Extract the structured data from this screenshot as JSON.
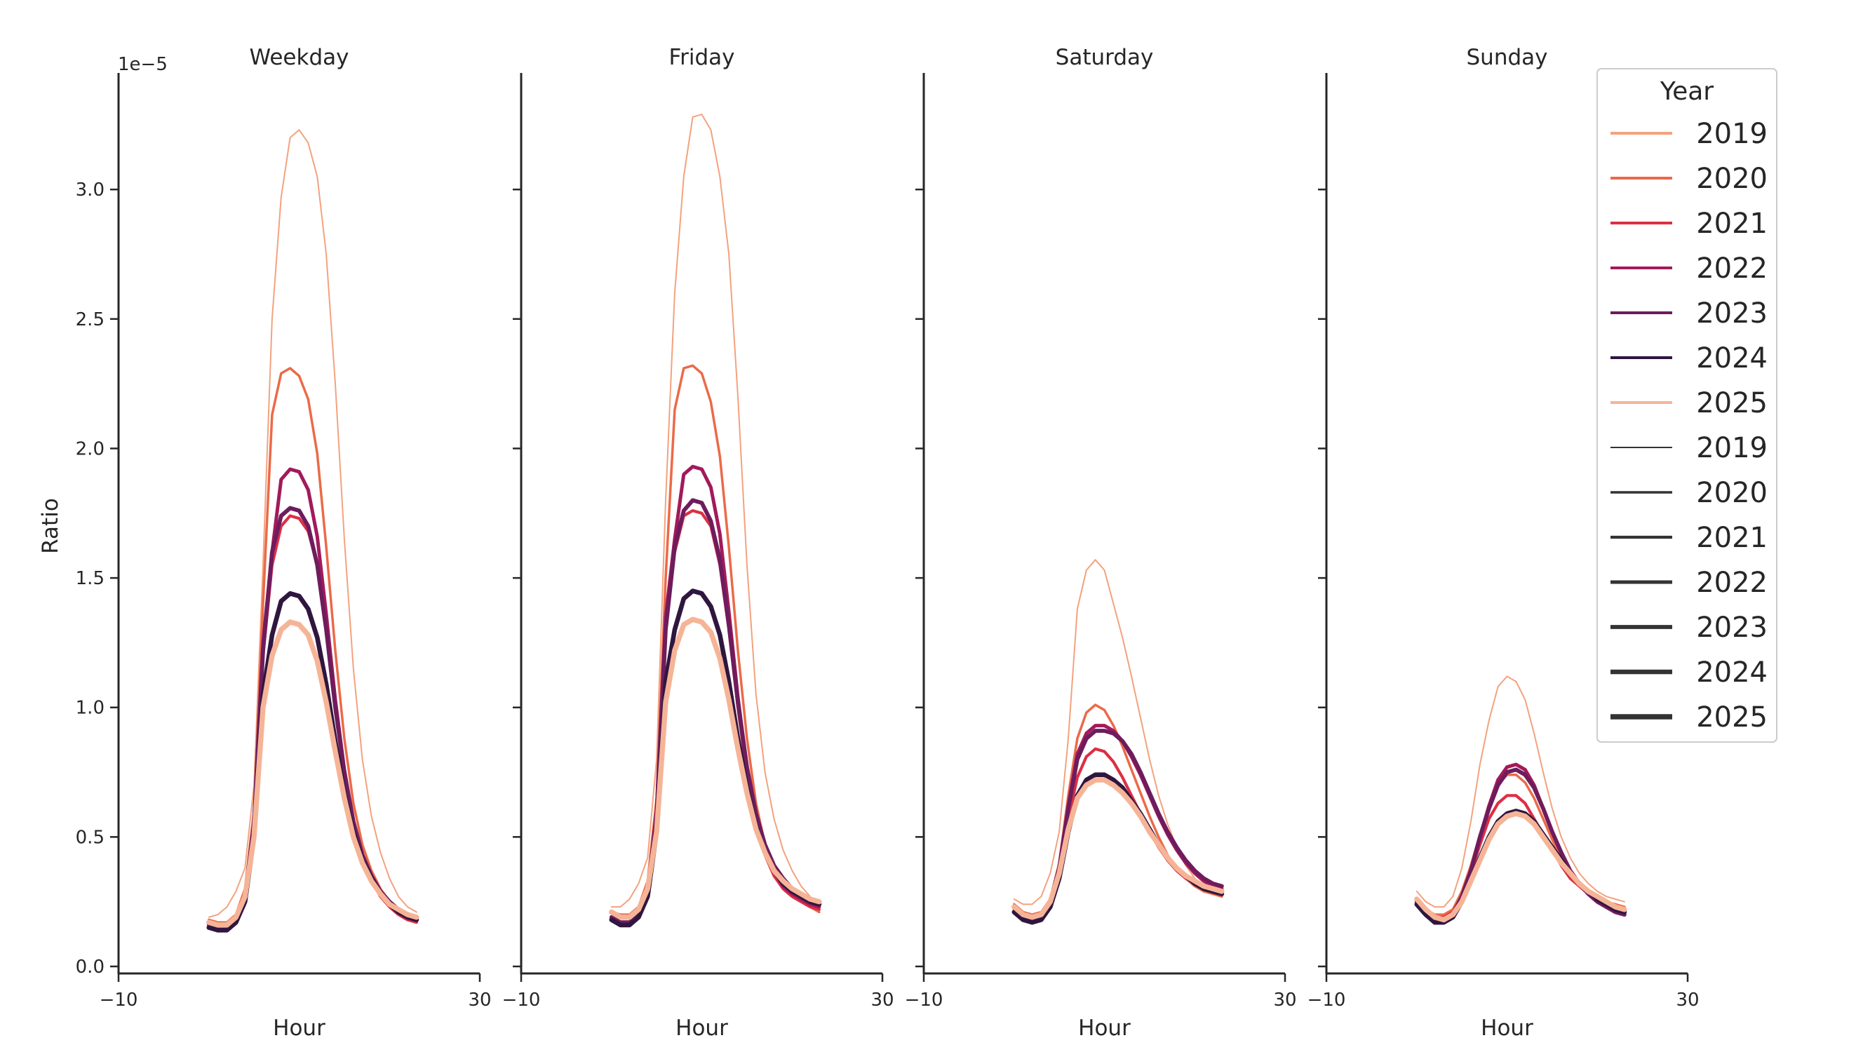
{
  "chart_data": {
    "type": "line",
    "layout": "small-multiples",
    "xlabel": "Hour",
    "ylabel": "Ratio",
    "y_offset_text": "1e−5",
    "xlim": [
      -10,
      30
    ],
    "ylim": [
      0,
      3.45
    ],
    "x_ticks": [
      -10,
      30
    ],
    "x_tick_labels": [
      "−10",
      "30"
    ],
    "y_ticks": [
      0,
      0.5,
      1.0,
      1.5,
      2.0,
      2.5,
      3.0
    ],
    "y_tick_labels": [
      "0.0",
      "0.5",
      "1.0",
      "1.5",
      "2.0",
      "2.5",
      "3.0"
    ],
    "legend": {
      "title": "Year",
      "placement": "upper-right",
      "hue_entries": [
        "2019",
        "2020",
        "2021",
        "2022",
        "2023",
        "2024",
        "2025"
      ],
      "size_entries": [
        "2019",
        "2020",
        "2021",
        "2022",
        "2023",
        "2024",
        "2025"
      ]
    },
    "years": [
      "2019",
      "2020",
      "2021",
      "2022",
      "2023",
      "2024",
      "2025"
    ],
    "colors": {
      "2019": "#f3a27e",
      "2020": "#eb6a48",
      "2021": "#dc2f44",
      "2022": "#a21a5b",
      "2023": "#6e1c5d",
      "2024": "#2f163f",
      "2025": "#f6b497"
    },
    "size_legend_color": "#333333",
    "line_widths": {
      "2019": 2,
      "2020": 3.5,
      "2021": 4.2,
      "2022": 5,
      "2023": 5.8,
      "2024": 6.6,
      "2025": 7.4
    },
    "x": [
      0,
      1,
      2,
      3,
      4,
      5,
      6,
      7,
      8,
      9,
      10,
      11,
      12,
      13,
      14,
      15,
      16,
      17,
      18,
      19,
      20,
      21,
      22,
      23
    ],
    "panels": [
      {
        "title": "Weekday",
        "series": {
          "2019": [
            0.19,
            0.2,
            0.23,
            0.29,
            0.38,
            0.7,
            1.55,
            2.5,
            2.97,
            3.2,
            3.23,
            3.18,
            3.05,
            2.75,
            2.25,
            1.65,
            1.15,
            0.8,
            0.58,
            0.44,
            0.34,
            0.27,
            0.23,
            0.21
          ],
          "2020": [
            0.18,
            0.17,
            0.17,
            0.2,
            0.3,
            0.6,
            1.4,
            2.13,
            2.29,
            2.31,
            2.28,
            2.19,
            1.98,
            1.62,
            1.22,
            0.88,
            0.63,
            0.47,
            0.37,
            0.3,
            0.25,
            0.22,
            0.19,
            0.17
          ],
          "2021": [
            0.16,
            0.15,
            0.15,
            0.18,
            0.27,
            0.55,
            1.2,
            1.55,
            1.7,
            1.74,
            1.73,
            1.68,
            1.55,
            1.3,
            1.0,
            0.74,
            0.55,
            0.42,
            0.33,
            0.27,
            0.23,
            0.2,
            0.18,
            0.17
          ],
          "2022": [
            0.16,
            0.15,
            0.15,
            0.18,
            0.27,
            0.56,
            1.25,
            1.6,
            1.88,
            1.92,
            1.91,
            1.84,
            1.66,
            1.36,
            1.03,
            0.76,
            0.56,
            0.43,
            0.34,
            0.28,
            0.24,
            0.21,
            0.19,
            0.18
          ],
          "2023": [
            0.16,
            0.15,
            0.15,
            0.18,
            0.27,
            0.55,
            1.22,
            1.6,
            1.74,
            1.77,
            1.76,
            1.7,
            1.55,
            1.3,
            1.0,
            0.75,
            0.56,
            0.43,
            0.35,
            0.29,
            0.25,
            0.22,
            0.2,
            0.19
          ],
          "2024": [
            0.15,
            0.14,
            0.14,
            0.17,
            0.25,
            0.5,
            1.05,
            1.28,
            1.41,
            1.44,
            1.43,
            1.38,
            1.27,
            1.09,
            0.87,
            0.67,
            0.52,
            0.41,
            0.34,
            0.28,
            0.24,
            0.21,
            0.19,
            0.18
          ],
          "2025": [
            0.17,
            0.16,
            0.16,
            0.19,
            0.27,
            0.5,
            1.0,
            1.2,
            1.3,
            1.33,
            1.32,
            1.28,
            1.18,
            1.02,
            0.83,
            0.65,
            0.5,
            0.4,
            0.33,
            0.28,
            0.24,
            0.22,
            0.2,
            0.19
          ]
        }
      },
      {
        "title": "Friday",
        "series": {
          "2019": [
            0.23,
            0.23,
            0.26,
            0.32,
            0.42,
            0.8,
            1.8,
            2.6,
            3.05,
            3.28,
            3.29,
            3.23,
            3.05,
            2.75,
            2.2,
            1.55,
            1.05,
            0.75,
            0.57,
            0.45,
            0.37,
            0.31,
            0.27,
            0.24
          ],
          "2020": [
            0.21,
            0.2,
            0.2,
            0.23,
            0.33,
            0.65,
            1.5,
            2.15,
            2.31,
            2.32,
            2.29,
            2.18,
            1.97,
            1.62,
            1.22,
            0.88,
            0.63,
            0.47,
            0.38,
            0.32,
            0.28,
            0.25,
            0.23,
            0.21
          ],
          "2021": [
            0.19,
            0.17,
            0.17,
            0.2,
            0.29,
            0.6,
            1.3,
            1.6,
            1.74,
            1.76,
            1.75,
            1.7,
            1.55,
            1.3,
            1.0,
            0.74,
            0.55,
            0.43,
            0.35,
            0.3,
            0.27,
            0.25,
            0.23,
            0.22
          ],
          "2022": [
            0.19,
            0.17,
            0.17,
            0.2,
            0.29,
            0.6,
            1.35,
            1.65,
            1.9,
            1.93,
            1.92,
            1.85,
            1.67,
            1.37,
            1.04,
            0.77,
            0.58,
            0.45,
            0.37,
            0.31,
            0.28,
            0.26,
            0.24,
            0.23
          ],
          "2023": [
            0.19,
            0.17,
            0.17,
            0.2,
            0.29,
            0.58,
            1.3,
            1.62,
            1.76,
            1.8,
            1.79,
            1.72,
            1.57,
            1.32,
            1.02,
            0.77,
            0.59,
            0.47,
            0.39,
            0.34,
            0.3,
            0.28,
            0.26,
            0.25
          ],
          "2024": [
            0.18,
            0.16,
            0.16,
            0.19,
            0.27,
            0.52,
            1.1,
            1.3,
            1.42,
            1.45,
            1.44,
            1.39,
            1.28,
            1.1,
            0.88,
            0.69,
            0.54,
            0.44,
            0.37,
            0.32,
            0.29,
            0.27,
            0.25,
            0.24
          ],
          "2025": [
            0.21,
            0.19,
            0.19,
            0.22,
            0.3,
            0.52,
            1.02,
            1.22,
            1.32,
            1.34,
            1.33,
            1.29,
            1.19,
            1.03,
            0.84,
            0.67,
            0.53,
            0.44,
            0.37,
            0.33,
            0.3,
            0.28,
            0.26,
            0.25
          ]
        }
      },
      {
        "title": "Saturday",
        "series": {
          "2019": [
            0.26,
            0.24,
            0.24,
            0.27,
            0.36,
            0.52,
            0.88,
            1.38,
            1.53,
            1.57,
            1.53,
            1.4,
            1.27,
            1.12,
            0.96,
            0.8,
            0.66,
            0.55,
            0.46,
            0.39,
            0.34,
            0.3,
            0.28,
            0.27
          ],
          "2020": [
            0.24,
            0.21,
            0.2,
            0.21,
            0.26,
            0.4,
            0.66,
            0.88,
            0.98,
            1.01,
            0.99,
            0.93,
            0.85,
            0.76,
            0.67,
            0.58,
            0.5,
            0.43,
            0.38,
            0.34,
            0.31,
            0.29,
            0.28,
            0.27
          ],
          "2021": [
            0.22,
            0.19,
            0.18,
            0.19,
            0.24,
            0.36,
            0.57,
            0.73,
            0.81,
            0.84,
            0.83,
            0.79,
            0.73,
            0.66,
            0.59,
            0.52,
            0.46,
            0.41,
            0.37,
            0.34,
            0.32,
            0.3,
            0.29,
            0.28
          ],
          "2022": [
            0.23,
            0.19,
            0.18,
            0.19,
            0.25,
            0.38,
            0.62,
            0.82,
            0.9,
            0.93,
            0.93,
            0.91,
            0.87,
            0.81,
            0.74,
            0.66,
            0.58,
            0.51,
            0.45,
            0.4,
            0.36,
            0.33,
            0.31,
            0.3
          ],
          "2023": [
            0.23,
            0.19,
            0.18,
            0.19,
            0.25,
            0.38,
            0.61,
            0.8,
            0.88,
            0.91,
            0.91,
            0.9,
            0.87,
            0.82,
            0.75,
            0.67,
            0.59,
            0.52,
            0.46,
            0.41,
            0.37,
            0.34,
            0.32,
            0.31
          ],
          "2024": [
            0.21,
            0.18,
            0.17,
            0.18,
            0.23,
            0.34,
            0.52,
            0.66,
            0.72,
            0.74,
            0.74,
            0.72,
            0.69,
            0.64,
            0.59,
            0.53,
            0.47,
            0.42,
            0.38,
            0.35,
            0.32,
            0.3,
            0.29,
            0.28
          ],
          "2025": [
            0.23,
            0.2,
            0.19,
            0.2,
            0.25,
            0.36,
            0.53,
            0.65,
            0.7,
            0.72,
            0.72,
            0.7,
            0.67,
            0.63,
            0.58,
            0.52,
            0.47,
            0.42,
            0.38,
            0.35,
            0.33,
            0.31,
            0.3,
            0.29
          ]
        }
      },
      {
        "title": "Sunday",
        "series": {
          "2019": [
            0.29,
            0.25,
            0.23,
            0.23,
            0.27,
            0.38,
            0.56,
            0.78,
            0.95,
            1.08,
            1.12,
            1.1,
            1.03,
            0.9,
            0.75,
            0.61,
            0.5,
            0.42,
            0.36,
            0.32,
            0.29,
            0.27,
            0.26,
            0.25
          ],
          "2020": [
            0.26,
            0.22,
            0.2,
            0.2,
            0.22,
            0.29,
            0.39,
            0.51,
            0.62,
            0.7,
            0.74,
            0.74,
            0.71,
            0.65,
            0.57,
            0.49,
            0.42,
            0.36,
            0.32,
            0.29,
            0.27,
            0.25,
            0.24,
            0.23
          ],
          "2021": [
            0.25,
            0.21,
            0.19,
            0.19,
            0.21,
            0.27,
            0.36,
            0.47,
            0.57,
            0.63,
            0.66,
            0.66,
            0.63,
            0.57,
            0.51,
            0.45,
            0.39,
            0.34,
            0.31,
            0.28,
            0.26,
            0.24,
            0.23,
            0.22
          ],
          "2022": [
            0.25,
            0.21,
            0.18,
            0.18,
            0.2,
            0.27,
            0.37,
            0.5,
            0.62,
            0.72,
            0.77,
            0.78,
            0.76,
            0.7,
            0.61,
            0.52,
            0.44,
            0.37,
            0.32,
            0.28,
            0.25,
            0.23,
            0.21,
            0.2
          ],
          "2023": [
            0.25,
            0.21,
            0.18,
            0.18,
            0.2,
            0.27,
            0.37,
            0.5,
            0.61,
            0.7,
            0.75,
            0.76,
            0.74,
            0.69,
            0.61,
            0.52,
            0.44,
            0.37,
            0.32,
            0.28,
            0.25,
            0.23,
            0.21,
            0.2
          ],
          "2024": [
            0.24,
            0.2,
            0.17,
            0.17,
            0.19,
            0.25,
            0.33,
            0.42,
            0.5,
            0.56,
            0.59,
            0.6,
            0.59,
            0.56,
            0.51,
            0.46,
            0.41,
            0.36,
            0.32,
            0.29,
            0.26,
            0.24,
            0.22,
            0.21
          ],
          "2025": [
            0.26,
            0.22,
            0.19,
            0.18,
            0.2,
            0.25,
            0.33,
            0.41,
            0.49,
            0.55,
            0.58,
            0.59,
            0.58,
            0.55,
            0.5,
            0.45,
            0.4,
            0.36,
            0.32,
            0.29,
            0.27,
            0.25,
            0.23,
            0.22
          ]
        }
      }
    ]
  }
}
